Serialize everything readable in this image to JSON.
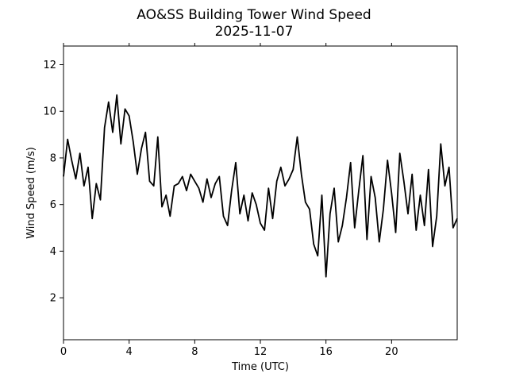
{
  "chart_data": {
    "type": "line",
    "title": "AO&SS Building Tower Wind Speed",
    "subtitle": "2025-11-07",
    "xlabel": "Time (UTC)",
    "ylabel": "Wind Speed (m/s)",
    "xlim": [
      0,
      24
    ],
    "ylim": [
      0.2,
      12.8
    ],
    "xticks": [
      0,
      4,
      8,
      12,
      16,
      20
    ],
    "yticks": [
      2,
      4,
      6,
      8,
      10,
      12
    ],
    "grid": false,
    "series": [
      {
        "color": "#000000",
        "x": [
          0.0,
          0.25,
          0.5,
          0.75,
          1.0,
          1.25,
          1.5,
          1.75,
          2.0,
          2.25,
          2.5,
          2.75,
          3.0,
          3.25,
          3.5,
          3.75,
          4.0,
          4.25,
          4.5,
          4.75,
          5.0,
          5.25,
          5.5,
          5.75,
          6.0,
          6.25,
          6.5,
          6.75,
          7.0,
          7.25,
          7.5,
          7.75,
          8.0,
          8.25,
          8.5,
          8.75,
          9.0,
          9.25,
          9.5,
          9.75,
          10.0,
          10.25,
          10.5,
          10.75,
          11.0,
          11.25,
          11.5,
          11.75,
          12.0,
          12.25,
          12.5,
          12.75,
          13.0,
          13.25,
          13.5,
          13.75,
          14.0,
          14.25,
          14.5,
          14.75,
          15.0,
          15.25,
          15.5,
          15.75,
          16.0,
          16.25,
          16.5,
          16.75,
          17.0,
          17.25,
          17.5,
          17.75,
          18.0,
          18.25,
          18.5,
          18.75,
          19.0,
          19.25,
          19.5,
          19.75,
          20.0,
          20.25,
          20.5,
          20.75,
          21.0,
          21.25,
          21.5,
          21.75,
          22.0,
          22.25,
          22.5,
          22.75,
          23.0,
          23.25,
          23.5,
          23.75,
          24.0
        ],
        "y": [
          7.2,
          8.8,
          7.9,
          7.1,
          8.2,
          6.8,
          7.6,
          5.4,
          6.9,
          6.2,
          9.3,
          10.4,
          9.1,
          10.7,
          8.6,
          10.1,
          9.8,
          8.7,
          7.3,
          8.4,
          9.1,
          7.0,
          6.8,
          8.9,
          5.9,
          6.4,
          5.5,
          6.8,
          6.9,
          7.2,
          6.6,
          7.3,
          7.0,
          6.7,
          6.1,
          7.1,
          6.3,
          6.9,
          7.2,
          5.5,
          5.1,
          6.6,
          7.8,
          5.6,
          6.4,
          5.3,
          6.5,
          6.0,
          5.2,
          4.9,
          6.7,
          5.4,
          7.0,
          7.6,
          6.8,
          7.1,
          7.5,
          8.9,
          7.3,
          6.1,
          5.8,
          4.3,
          3.8,
          6.4,
          2.9,
          5.6,
          6.7,
          4.4,
          5.1,
          6.3,
          7.8,
          5.0,
          6.6,
          8.1,
          4.5,
          7.2,
          6.3,
          4.4,
          5.8,
          7.9,
          6.5,
          4.8,
          8.2,
          7.0,
          5.6,
          7.3,
          4.9,
          6.4,
          5.1,
          7.5,
          4.2,
          5.5,
          8.6,
          6.8,
          7.6,
          5.0,
          5.4
        ]
      }
    ]
  }
}
